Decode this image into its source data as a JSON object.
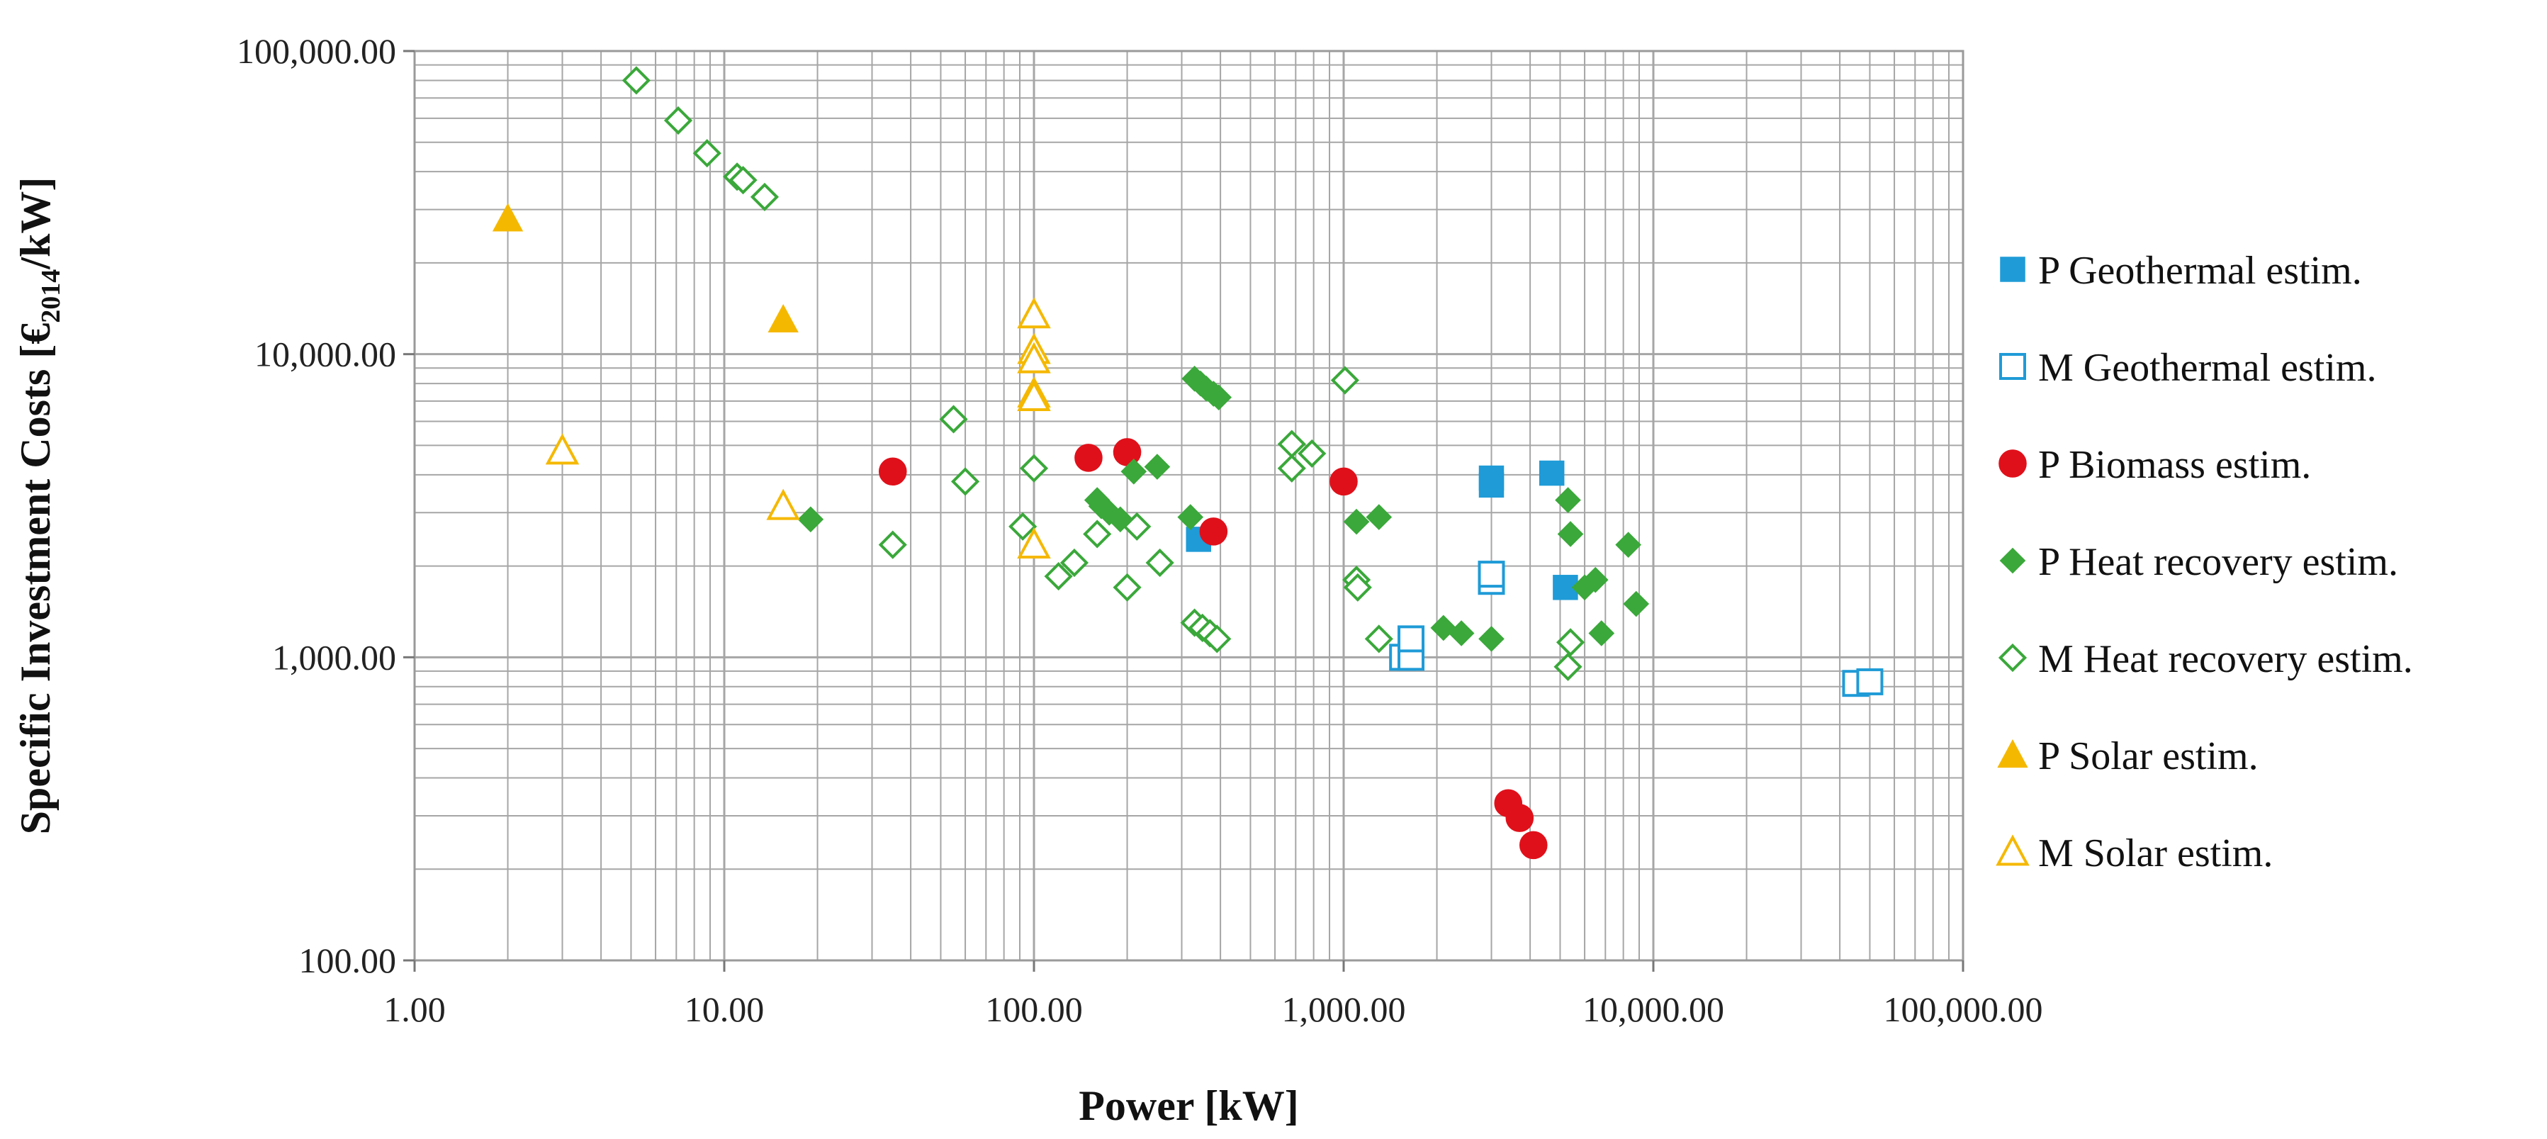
{
  "chart_data": {
    "type": "scatter",
    "title": "",
    "xlabel": "Power [kW]",
    "ylabel_parts": {
      "prefix": "Specific Investment Costs [€",
      "subscript": "2014",
      "suffix": "/kW]"
    },
    "x_scale": "log",
    "y_scale": "log",
    "xlim": [
      1,
      100000
    ],
    "ylim": [
      100,
      100000
    ],
    "x_ticks": [
      {
        "value": 1,
        "label": "1.00"
      },
      {
        "value": 10,
        "label": "10.00"
      },
      {
        "value": 100,
        "label": "100.00"
      },
      {
        "value": 1000,
        "label": "1,000.00"
      },
      {
        "value": 10000,
        "label": "10,000.00"
      },
      {
        "value": 100000,
        "label": "100,000.00"
      }
    ],
    "y_ticks": [
      {
        "value": 100,
        "label": "100.00"
      },
      {
        "value": 1000,
        "label": "1,000.00"
      },
      {
        "value": 10000,
        "label": "10,000.00"
      },
      {
        "value": 100000,
        "label": "100,000.00"
      }
    ],
    "grid": true,
    "legend_position": "right",
    "series": [
      {
        "name": "P Geothermal estim.",
        "marker": "square",
        "filled": true,
        "color": "#1f9bd7",
        "points": [
          [
            340,
            2450
          ],
          [
            3000,
            3700
          ],
          [
            3000,
            3900
          ],
          [
            4700,
            4050
          ],
          [
            5200,
            1700
          ]
        ]
      },
      {
        "name": "M Geothermal estim.",
        "marker": "square",
        "filled": false,
        "color": "#1f9bd7",
        "points": [
          [
            3000,
            1780
          ],
          [
            3000,
            1880
          ],
          [
            1550,
            1000
          ],
          [
            1650,
            1000
          ],
          [
            1650,
            1150
          ],
          [
            45000,
            820
          ],
          [
            50000,
            830
          ]
        ]
      },
      {
        "name": "P Biomass estim.",
        "marker": "circle",
        "filled": true,
        "color": "#e0101a",
        "points": [
          [
            35,
            4100
          ],
          [
            150,
            4550
          ],
          [
            200,
            4750
          ],
          [
            380,
            2600
          ],
          [
            1000,
            3800
          ],
          [
            3400,
            330
          ],
          [
            3700,
            295
          ],
          [
            4100,
            240
          ]
        ]
      },
      {
        "name": "P Heat recovery estim.",
        "marker": "diamond",
        "filled": true,
        "color": "#3aa83a",
        "points": [
          [
            19,
            2850
          ],
          [
            160,
            3300
          ],
          [
            165,
            3150
          ],
          [
            175,
            3000
          ],
          [
            190,
            2850
          ],
          [
            210,
            4100
          ],
          [
            250,
            4250
          ],
          [
            320,
            2900
          ],
          [
            330,
            8300
          ],
          [
            345,
            8000
          ],
          [
            360,
            7700
          ],
          [
            380,
            7400
          ],
          [
            395,
            7200
          ],
          [
            1100,
            2800
          ],
          [
            1300,
            2900
          ],
          [
            2100,
            1250
          ],
          [
            2400,
            1200
          ],
          [
            3000,
            1150
          ],
          [
            5300,
            3300
          ],
          [
            5400,
            2550
          ],
          [
            6000,
            1700
          ],
          [
            6500,
            1800
          ],
          [
            6800,
            1200
          ],
          [
            8300,
            2350
          ],
          [
            8800,
            1500
          ]
        ]
      },
      {
        "name": "M Heat recovery estim.",
        "marker": "diamond",
        "filled": false,
        "color": "#3aa83a",
        "points": [
          [
            5.2,
            80000
          ],
          [
            7.1,
            59000
          ],
          [
            8.8,
            46000
          ],
          [
            11,
            38500
          ],
          [
            11.5,
            37500
          ],
          [
            13.5,
            33000
          ],
          [
            35,
            2350
          ],
          [
            55,
            6100
          ],
          [
            60,
            3800
          ],
          [
            92,
            2700
          ],
          [
            100,
            4200
          ],
          [
            120,
            1850
          ],
          [
            135,
            2050
          ],
          [
            160,
            2550
          ],
          [
            200,
            1700
          ],
          [
            215,
            2700
          ],
          [
            255,
            2050
          ],
          [
            330,
            1300
          ],
          [
            350,
            1250
          ],
          [
            370,
            1200
          ],
          [
            390,
            1150
          ],
          [
            680,
            5050
          ],
          [
            680,
            4200
          ],
          [
            790,
            4700
          ],
          [
            1010,
            8200
          ],
          [
            1100,
            1800
          ],
          [
            1110,
            1700
          ],
          [
            1300,
            1150
          ],
          [
            5300,
            930
          ],
          [
            5400,
            1120
          ]
        ]
      },
      {
        "name": "P Solar estim.",
        "marker": "triangle",
        "filled": true,
        "color": "#f5b800",
        "points": [
          [
            2,
            28000
          ],
          [
            15.5,
            13000
          ]
        ]
      },
      {
        "name": "M Solar estim.",
        "marker": "triangle",
        "filled": false,
        "color": "#f5b800",
        "points": [
          [
            3,
            4800
          ],
          [
            15.5,
            3150
          ],
          [
            100,
            13500
          ],
          [
            100,
            10300
          ],
          [
            100,
            9600
          ],
          [
            100,
            7400
          ],
          [
            100,
            7200
          ],
          [
            100,
            2350
          ]
        ]
      }
    ]
  }
}
